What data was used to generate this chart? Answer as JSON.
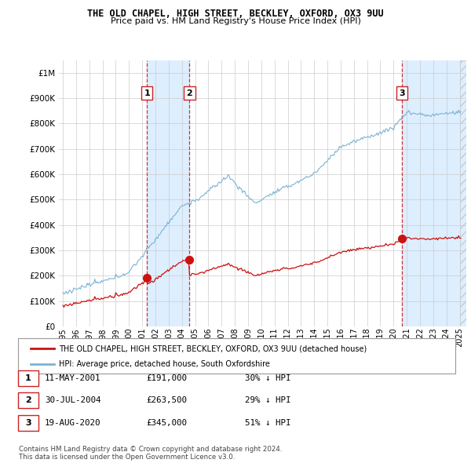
{
  "title": "THE OLD CHAPEL, HIGH STREET, BECKLEY, OXFORD, OX3 9UU",
  "subtitle": "Price paid vs. HM Land Registry's House Price Index (HPI)",
  "ytick_values": [
    0,
    100000,
    200000,
    300000,
    400000,
    500000,
    600000,
    700000,
    800000,
    900000,
    1000000
  ],
  "ylim": [
    0,
    1050000
  ],
  "xlim_start": 1994.7,
  "xlim_end": 2025.5,
  "transactions": [
    {
      "date_num": 2001.36,
      "price": 191000,
      "label": "1"
    },
    {
      "date_num": 2004.58,
      "price": 263500,
      "label": "2"
    },
    {
      "date_num": 2020.63,
      "price": 345000,
      "label": "3"
    }
  ],
  "transaction_table": [
    {
      "num": "1",
      "date": "11-MAY-2001",
      "price": "£191,000",
      "note": "30% ↓ HPI"
    },
    {
      "num": "2",
      "date": "30-JUL-2004",
      "price": "£263,500",
      "note": "29% ↓ HPI"
    },
    {
      "num": "3",
      "date": "19-AUG-2020",
      "price": "£345,000",
      "note": "51% ↓ HPI"
    }
  ],
  "legend_entries": [
    "THE OLD CHAPEL, HIGH STREET, BECKLEY, OXFORD, OX3 9UU (detached house)",
    "HPI: Average price, detached house, South Oxfordshire"
  ],
  "footer": [
    "Contains HM Land Registry data © Crown copyright and database right 2024.",
    "This data is licensed under the Open Government Licence v3.0."
  ],
  "hpi_color": "#7ab3d4",
  "price_color": "#cc1111",
  "marker_color": "#cc1111",
  "vline_color": "#cc2222",
  "shade_color": "#ddeeff",
  "grid_color": "#cccccc",
  "bg_color": "#ffffff"
}
